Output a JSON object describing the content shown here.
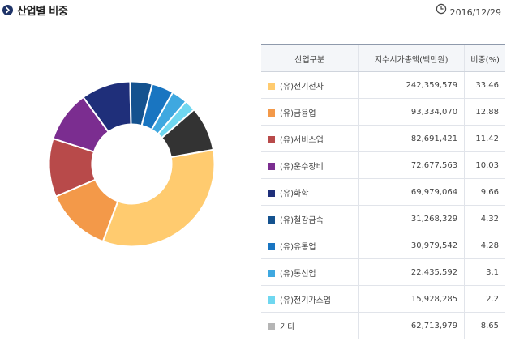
{
  "header": {
    "title": "산업별 비중",
    "date": "2016/12/29"
  },
  "table": {
    "headers": [
      "산업구분",
      "지수시가총액(백만원)",
      "비중(%)"
    ]
  },
  "chart_data": {
    "type": "pie",
    "donut": true,
    "categories": [
      "(유)전기전자",
      "(유)금융업",
      "(유)서비스업",
      "(유)운수장비",
      "(유)화학",
      "(유)철강금속",
      "(유)유통업",
      "(유)통신업",
      "(유)전기가스업",
      "기타"
    ],
    "values": [
      242359579,
      93334070,
      82691421,
      72677563,
      69979064,
      31268329,
      30979542,
      22435592,
      15928285,
      62713979
    ],
    "value_labels": [
      "242,359,579",
      "93,334,070",
      "82,691,421",
      "72,677,563",
      "69,979,064",
      "31,268,329",
      "30,979,542",
      "22,435,592",
      "15,928,285",
      "62,713,979"
    ],
    "percent": [
      "33.46",
      "12.88",
      "11.42",
      "10.03",
      "9.66",
      "4.32",
      "4.28",
      "3.1",
      "2.2",
      "8.65"
    ],
    "legend_colors": [
      "#ffcb6f",
      "#f39949",
      "#b84a4a",
      "#7b2d90",
      "#1f2f7a",
      "#14528f",
      "#1975c1",
      "#3fa8e0",
      "#6fd7f0",
      "#b5b5b5"
    ],
    "pie_colors": [
      "#ffcb6f",
      "#f39949",
      "#b84a4a",
      "#7b2d90",
      "#1f2f7a",
      "#14528f",
      "#1975c1",
      "#3fa8e0",
      "#6fd7f0",
      "#333333"
    ]
  }
}
